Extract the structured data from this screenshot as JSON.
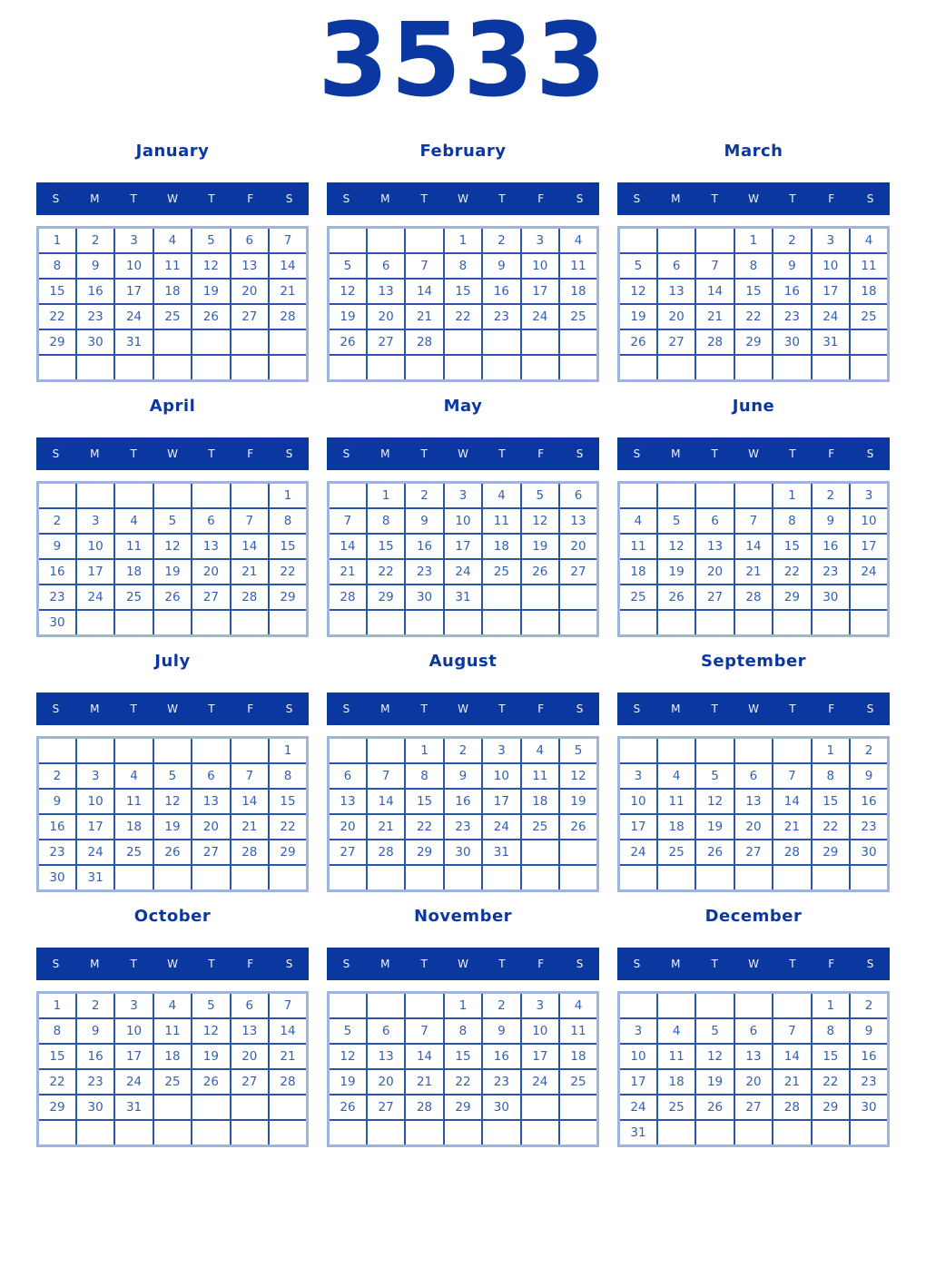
{
  "year": "3533",
  "weekdays": [
    "S",
    "M",
    "T",
    "W",
    "T",
    "F",
    "S"
  ],
  "colors": {
    "accent_navy": "#0b38a0",
    "date_text": "#3460af",
    "grid_inner_border": "#2b55a9",
    "grid_outer_border": "#9db4dc",
    "weekday_text": "#f2f5fb",
    "page_background": "#ffffff"
  },
  "months": [
    {
      "name": "January",
      "weeks": [
        [
          "1",
          "2",
          "3",
          "4",
          "5",
          "6",
          "7"
        ],
        [
          "8",
          "9",
          "10",
          "11",
          "12",
          "13",
          "14"
        ],
        [
          "15",
          "16",
          "17",
          "18",
          "19",
          "20",
          "21"
        ],
        [
          "22",
          "23",
          "24",
          "25",
          "26",
          "27",
          "28"
        ],
        [
          "29",
          "30",
          "31",
          "",
          "",
          "",
          ""
        ],
        [
          "",
          "",
          "",
          "",
          "",
          "",
          ""
        ]
      ]
    },
    {
      "name": "February",
      "weeks": [
        [
          "",
          "",
          "",
          "1",
          "2",
          "3",
          "4"
        ],
        [
          "5",
          "6",
          "7",
          "8",
          "9",
          "10",
          "11"
        ],
        [
          "12",
          "13",
          "14",
          "15",
          "16",
          "17",
          "18"
        ],
        [
          "19",
          "20",
          "21",
          "22",
          "23",
          "24",
          "25"
        ],
        [
          "26",
          "27",
          "28",
          "",
          "",
          "",
          ""
        ],
        [
          "",
          "",
          "",
          "",
          "",
          "",
          ""
        ]
      ]
    },
    {
      "name": "March",
      "weeks": [
        [
          "",
          "",
          "",
          "1",
          "2",
          "3",
          "4"
        ],
        [
          "5",
          "6",
          "7",
          "8",
          "9",
          "10",
          "11"
        ],
        [
          "12",
          "13",
          "14",
          "15",
          "16",
          "17",
          "18"
        ],
        [
          "19",
          "20",
          "21",
          "22",
          "23",
          "24",
          "25"
        ],
        [
          "26",
          "27",
          "28",
          "29",
          "30",
          "31",
          ""
        ],
        [
          "",
          "",
          "",
          "",
          "",
          "",
          ""
        ]
      ]
    },
    {
      "name": "April",
      "weeks": [
        [
          "",
          "",
          "",
          "",
          "",
          "",
          "1"
        ],
        [
          "2",
          "3",
          "4",
          "5",
          "6",
          "7",
          "8"
        ],
        [
          "9",
          "10",
          "11",
          "12",
          "13",
          "14",
          "15"
        ],
        [
          "16",
          "17",
          "18",
          "19",
          "20",
          "21",
          "22"
        ],
        [
          "23",
          "24",
          "25",
          "26",
          "27",
          "28",
          "29"
        ],
        [
          "30",
          "",
          "",
          "",
          "",
          "",
          ""
        ]
      ]
    },
    {
      "name": "May",
      "weeks": [
        [
          "",
          "1",
          "2",
          "3",
          "4",
          "5",
          "6"
        ],
        [
          "7",
          "8",
          "9",
          "10",
          "11",
          "12",
          "13"
        ],
        [
          "14",
          "15",
          "16",
          "17",
          "18",
          "19",
          "20"
        ],
        [
          "21",
          "22",
          "23",
          "24",
          "25",
          "26",
          "27"
        ],
        [
          "28",
          "29",
          "30",
          "31",
          "",
          "",
          ""
        ],
        [
          "",
          "",
          "",
          "",
          "",
          "",
          ""
        ]
      ]
    },
    {
      "name": "June",
      "weeks": [
        [
          "",
          "",
          "",
          "",
          "1",
          "2",
          "3"
        ],
        [
          "4",
          "5",
          "6",
          "7",
          "8",
          "9",
          "10"
        ],
        [
          "11",
          "12",
          "13",
          "14",
          "15",
          "16",
          "17"
        ],
        [
          "18",
          "19",
          "20",
          "21",
          "22",
          "23",
          "24"
        ],
        [
          "25",
          "26",
          "27",
          "28",
          "29",
          "30",
          ""
        ],
        [
          "",
          "",
          "",
          "",
          "",
          "",
          ""
        ]
      ]
    },
    {
      "name": "July",
      "weeks": [
        [
          "",
          "",
          "",
          "",
          "",
          "",
          "1"
        ],
        [
          "2",
          "3",
          "4",
          "5",
          "6",
          "7",
          "8"
        ],
        [
          "9",
          "10",
          "11",
          "12",
          "13",
          "14",
          "15"
        ],
        [
          "16",
          "17",
          "18",
          "19",
          "20",
          "21",
          "22"
        ],
        [
          "23",
          "24",
          "25",
          "26",
          "27",
          "28",
          "29"
        ],
        [
          "30",
          "31",
          "",
          "",
          "",
          "",
          ""
        ]
      ]
    },
    {
      "name": "August",
      "weeks": [
        [
          "",
          "",
          "1",
          "2",
          "3",
          "4",
          "5"
        ],
        [
          "6",
          "7",
          "8",
          "9",
          "10",
          "11",
          "12"
        ],
        [
          "13",
          "14",
          "15",
          "16",
          "17",
          "18",
          "19"
        ],
        [
          "20",
          "21",
          "22",
          "23",
          "24",
          "25",
          "26"
        ],
        [
          "27",
          "28",
          "29",
          "30",
          "31",
          "",
          ""
        ],
        [
          "",
          "",
          "",
          "",
          "",
          "",
          ""
        ]
      ]
    },
    {
      "name": "September",
      "weeks": [
        [
          "",
          "",
          "",
          "",
          "",
          "1",
          "2"
        ],
        [
          "3",
          "4",
          "5",
          "6",
          "7",
          "8",
          "9"
        ],
        [
          "10",
          "11",
          "12",
          "13",
          "14",
          "15",
          "16"
        ],
        [
          "17",
          "18",
          "19",
          "20",
          "21",
          "22",
          "23"
        ],
        [
          "24",
          "25",
          "26",
          "27",
          "28",
          "29",
          "30"
        ],
        [
          "",
          "",
          "",
          "",
          "",
          "",
          ""
        ]
      ]
    },
    {
      "name": "October",
      "weeks": [
        [
          "1",
          "2",
          "3",
          "4",
          "5",
          "6",
          "7"
        ],
        [
          "8",
          "9",
          "10",
          "11",
          "12",
          "13",
          "14"
        ],
        [
          "15",
          "16",
          "17",
          "18",
          "19",
          "20",
          "21"
        ],
        [
          "22",
          "23",
          "24",
          "25",
          "26",
          "27",
          "28"
        ],
        [
          "29",
          "30",
          "31",
          "",
          "",
          "",
          ""
        ],
        [
          "",
          "",
          "",
          "",
          "",
          "",
          ""
        ]
      ]
    },
    {
      "name": "November",
      "weeks": [
        [
          "",
          "",
          "",
          "1",
          "2",
          "3",
          "4"
        ],
        [
          "5",
          "6",
          "7",
          "8",
          "9",
          "10",
          "11"
        ],
        [
          "12",
          "13",
          "14",
          "15",
          "16",
          "17",
          "18"
        ],
        [
          "19",
          "20",
          "21",
          "22",
          "23",
          "24",
          "25"
        ],
        [
          "26",
          "27",
          "28",
          "29",
          "30",
          "",
          ""
        ],
        [
          "",
          "",
          "",
          "",
          "",
          "",
          ""
        ]
      ]
    },
    {
      "name": "December",
      "weeks": [
        [
          "",
          "",
          "",
          "",
          "",
          "1",
          "2"
        ],
        [
          "3",
          "4",
          "5",
          "6",
          "7",
          "8",
          "9"
        ],
        [
          "10",
          "11",
          "12",
          "13",
          "14",
          "15",
          "16"
        ],
        [
          "17",
          "18",
          "19",
          "20",
          "21",
          "22",
          "23"
        ],
        [
          "24",
          "25",
          "26",
          "27",
          "28",
          "29",
          "30"
        ],
        [
          "31",
          "",
          "",
          "",
          "",
          "",
          ""
        ]
      ]
    }
  ]
}
